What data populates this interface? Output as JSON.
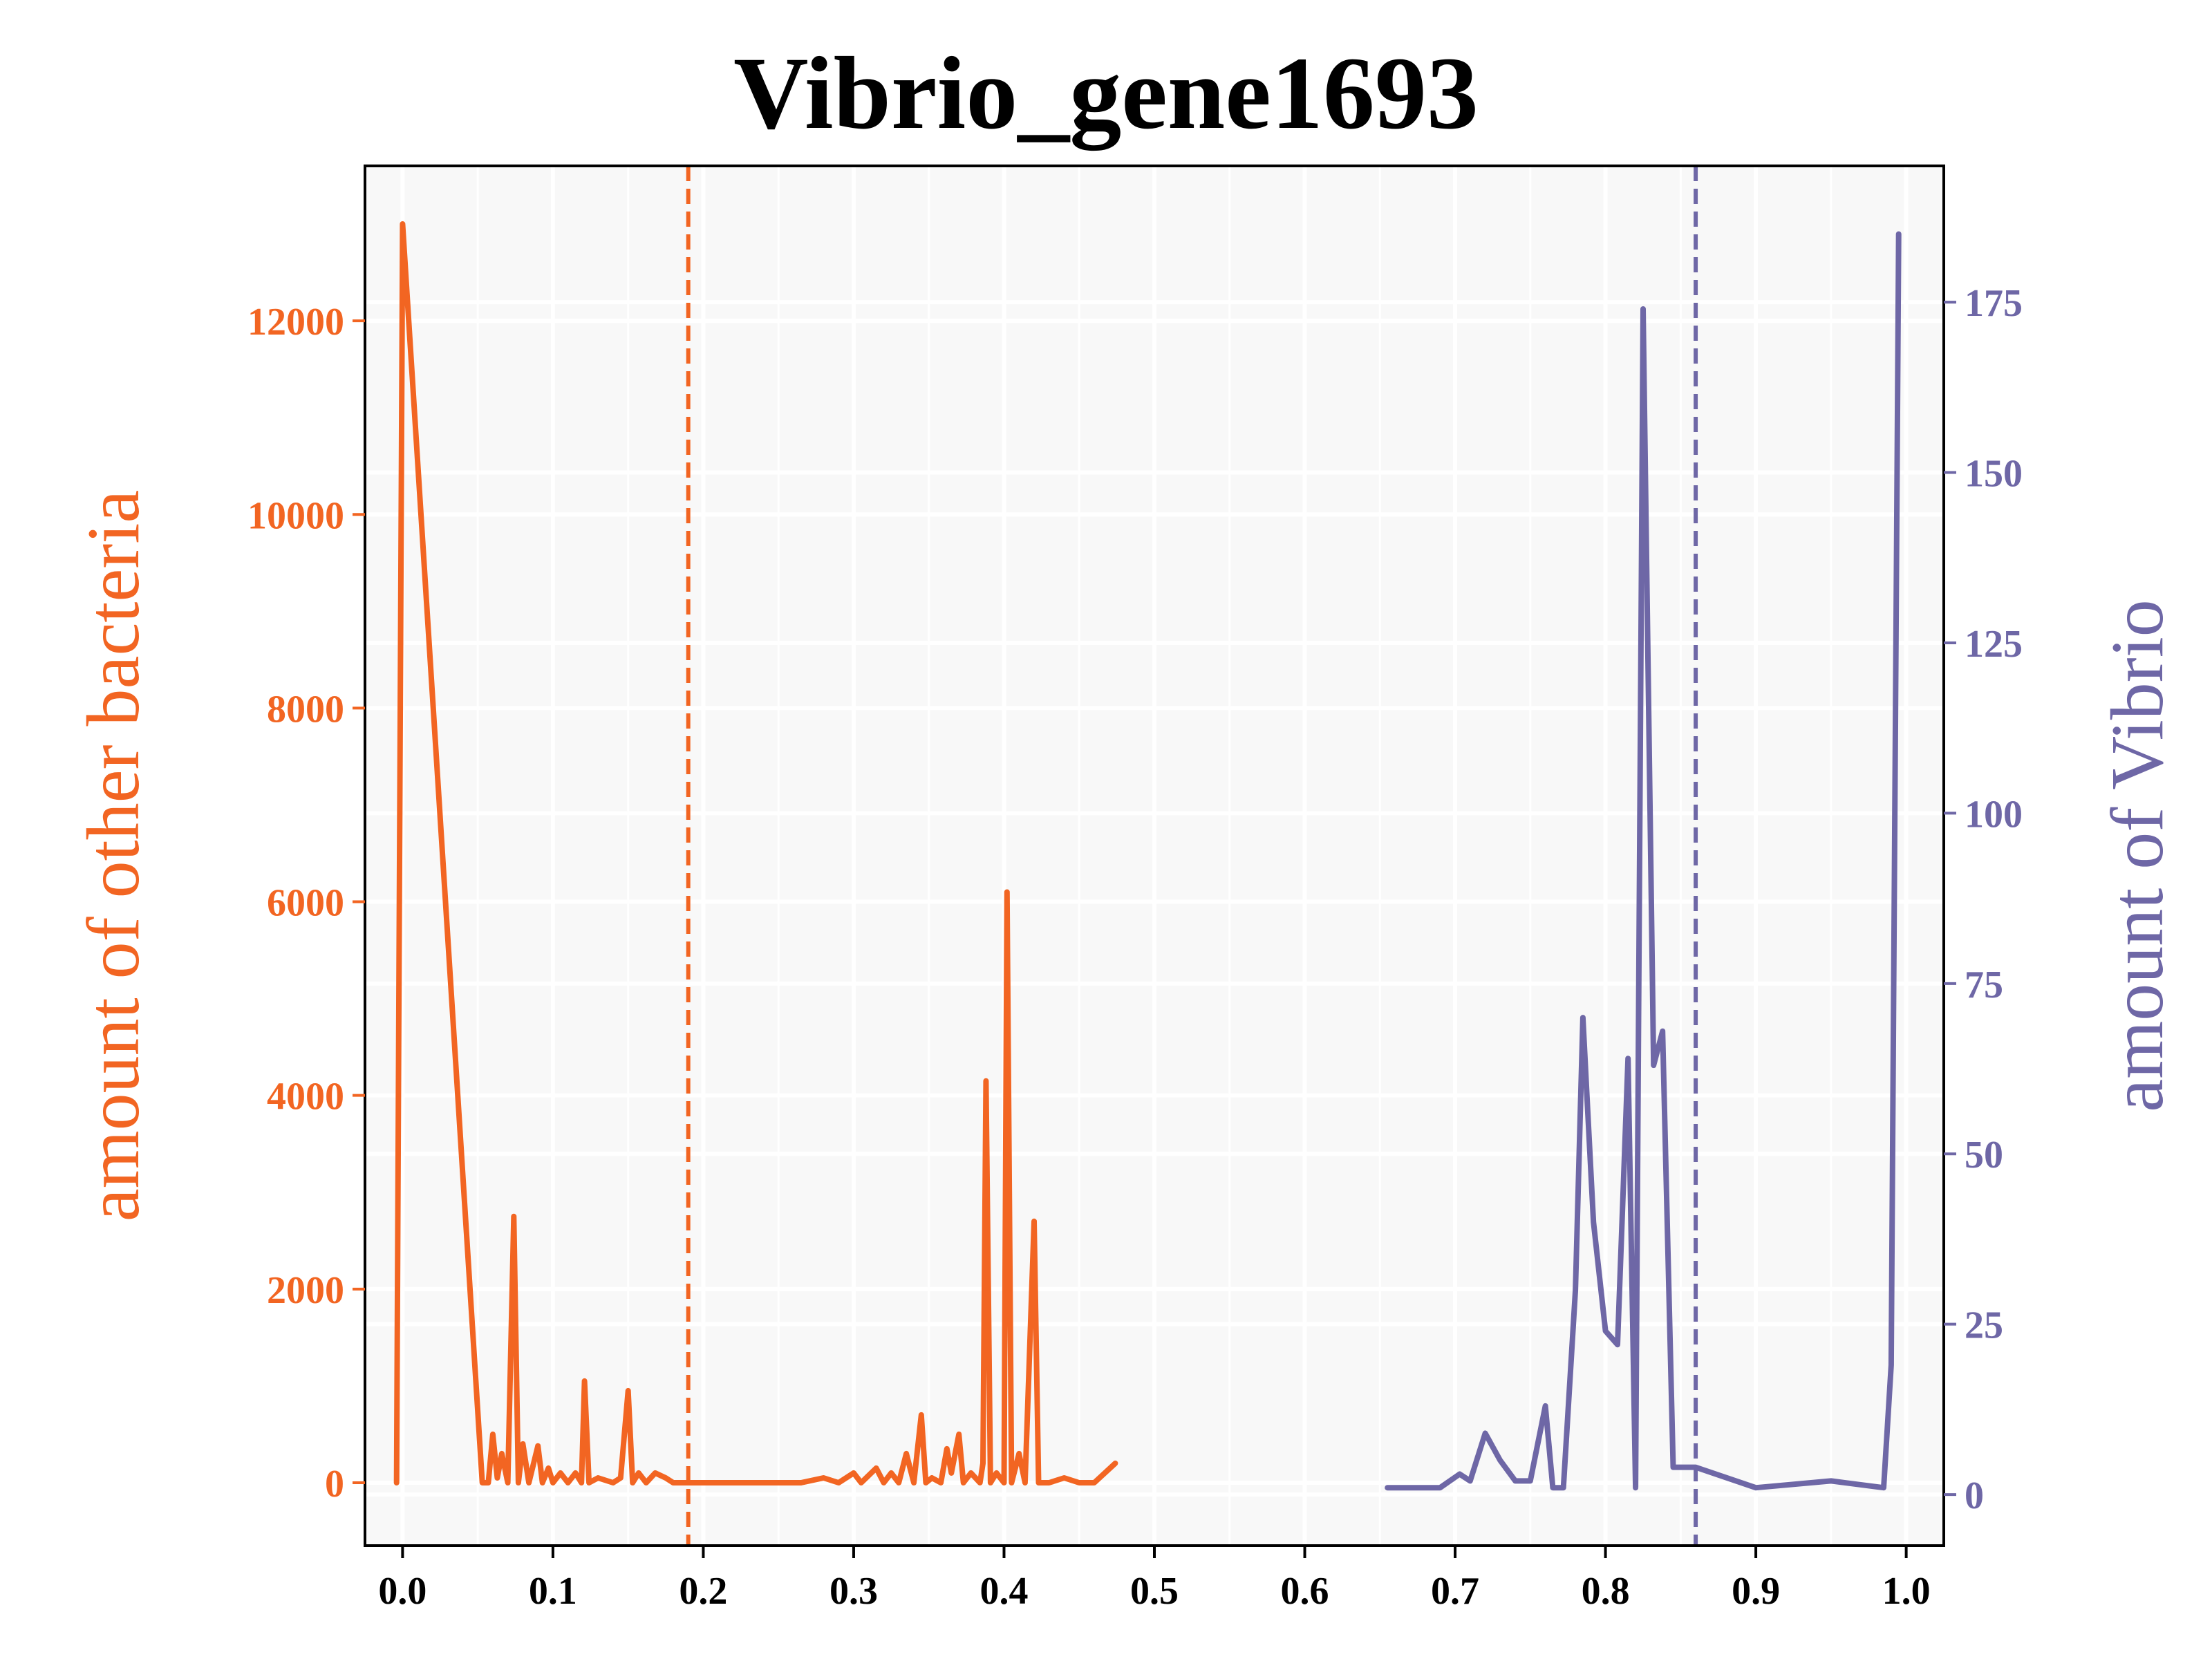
{
  "chart_data": {
    "type": "line",
    "title": "Vibrio_gene1693",
    "xlabel": "",
    "ylabel": "amount of other bacteria",
    "y2label": "amount of Vibrio",
    "xlim": [
      -0.025,
      1.025
    ],
    "ylim": [
      -650,
      13600
    ],
    "y2lim": [
      -7.5,
      195
    ],
    "xticks": [
      0.0,
      0.1,
      0.2,
      0.3,
      0.4,
      0.5,
      0.6,
      0.7,
      0.8,
      0.9,
      1.0
    ],
    "xtick_labels": [
      "0.0",
      "0.1",
      "0.2",
      "0.3",
      "0.4",
      "0.5",
      "0.6",
      "0.7",
      "0.8",
      "0.9",
      "1.0"
    ],
    "yticks": [
      0,
      2000,
      4000,
      6000,
      8000,
      10000,
      12000
    ],
    "ytick_labels": [
      "0",
      "2000",
      "4000",
      "6000",
      "8000",
      "10000",
      "12000"
    ],
    "y2ticks": [
      0,
      25,
      50,
      75,
      100,
      125,
      150,
      175
    ],
    "y2tick_labels": [
      "0",
      "25",
      "50",
      "75",
      "100",
      "125",
      "150",
      "175"
    ],
    "grid": true,
    "colors": {
      "other": "#f26522",
      "vibrio": "#6e67a6",
      "background": "#f8f8f8",
      "grid": "#ffffff"
    },
    "vlines": [
      {
        "x": 0.19,
        "color": "#f26522",
        "style": "dashed",
        "axis": "left"
      },
      {
        "x": 0.86,
        "color": "#6e67a6",
        "style": "dashed",
        "axis": "right"
      }
    ],
    "series": [
      {
        "axis": "left",
        "color": "#f26522",
        "points": [
          [
            -0.004,
            0
          ],
          [
            0.0,
            13000
          ],
          [
            0.053,
            0
          ],
          [
            0.057,
            0
          ],
          [
            0.06,
            500
          ],
          [
            0.063,
            50
          ],
          [
            0.066,
            300
          ],
          [
            0.07,
            0
          ],
          [
            0.074,
            2750
          ],
          [
            0.077,
            0
          ],
          [
            0.08,
            400
          ],
          [
            0.084,
            0
          ],
          [
            0.09,
            380
          ],
          [
            0.093,
            0
          ],
          [
            0.097,
            150
          ],
          [
            0.1,
            0
          ],
          [
            0.105,
            100
          ],
          [
            0.11,
            0
          ],
          [
            0.115,
            100
          ],
          [
            0.119,
            0
          ],
          [
            0.121,
            1050
          ],
          [
            0.124,
            0
          ],
          [
            0.13,
            50
          ],
          [
            0.14,
            0
          ],
          [
            0.145,
            50
          ],
          [
            0.15,
            950
          ],
          [
            0.153,
            0
          ],
          [
            0.157,
            100
          ],
          [
            0.162,
            0
          ],
          [
            0.168,
            100
          ],
          [
            0.175,
            50
          ],
          [
            0.18,
            0
          ],
          [
            0.19,
            0
          ],
          [
            0.25,
            0
          ],
          [
            0.265,
            0
          ],
          [
            0.28,
            50
          ],
          [
            0.29,
            0
          ],
          [
            0.3,
            100
          ],
          [
            0.305,
            0
          ],
          [
            0.315,
            150
          ],
          [
            0.32,
            0
          ],
          [
            0.325,
            100
          ],
          [
            0.33,
            0
          ],
          [
            0.335,
            300
          ],
          [
            0.34,
            0
          ],
          [
            0.345,
            700
          ],
          [
            0.348,
            0
          ],
          [
            0.352,
            50
          ],
          [
            0.358,
            0
          ],
          [
            0.362,
            350
          ],
          [
            0.365,
            100
          ],
          [
            0.37,
            500
          ],
          [
            0.373,
            0
          ],
          [
            0.378,
            100
          ],
          [
            0.384,
            0
          ],
          [
            0.386,
            200
          ],
          [
            0.388,
            4150
          ],
          [
            0.391,
            0
          ],
          [
            0.395,
            100
          ],
          [
            0.4,
            0
          ],
          [
            0.402,
            6100
          ],
          [
            0.405,
            0
          ],
          [
            0.41,
            300
          ],
          [
            0.414,
            0
          ],
          [
            0.42,
            2700
          ],
          [
            0.423,
            0
          ],
          [
            0.43,
            0
          ],
          [
            0.44,
            50
          ],
          [
            0.45,
            0
          ],
          [
            0.46,
            0
          ],
          [
            0.474,
            200
          ]
        ]
      },
      {
        "axis": "right",
        "color": "#6e67a6",
        "points": [
          [
            0.655,
            1
          ],
          [
            0.69,
            1
          ],
          [
            0.703,
            3
          ],
          [
            0.71,
            2
          ],
          [
            0.72,
            9
          ],
          [
            0.73,
            5
          ],
          [
            0.74,
            2
          ],
          [
            0.75,
            2
          ],
          [
            0.76,
            13
          ],
          [
            0.765,
            1
          ],
          [
            0.772,
            1
          ],
          [
            0.78,
            30
          ],
          [
            0.785,
            70
          ],
          [
            0.792,
            40
          ],
          [
            0.8,
            24
          ],
          [
            0.808,
            22
          ],
          [
            0.815,
            64
          ],
          [
            0.82,
            1
          ],
          [
            0.825,
            174
          ],
          [
            0.832,
            63
          ],
          [
            0.838,
            68
          ],
          [
            0.845,
            4
          ],
          [
            0.86,
            4
          ],
          [
            0.9,
            1
          ],
          [
            0.95,
            2
          ],
          [
            0.985,
            1
          ],
          [
            0.99,
            19
          ],
          [
            0.995,
            185
          ]
        ]
      }
    ]
  }
}
